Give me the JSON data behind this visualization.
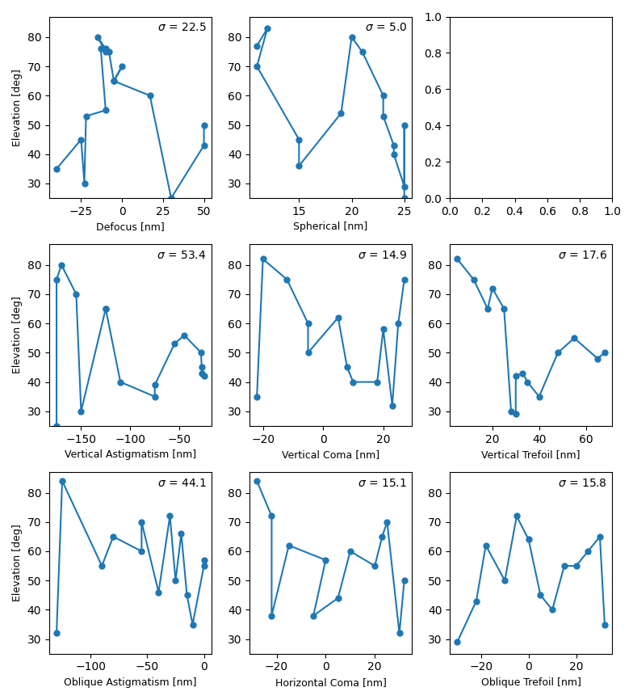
{
  "line_color": "#1f77b4",
  "marker": "o",
  "markersize": 5,
  "linewidth": 1.5,
  "ylabel": "Elevation [deg]",
  "ylim_default": [
    25,
    87
  ],
  "subplots": [
    {
      "xlabel": "Defocus [nm]",
      "sigma": "22.5",
      "x": [
        -40,
        -25,
        -23,
        -22,
        -15,
        -13,
        -10,
        -10,
        -5,
        0,
        -10,
        17,
        30,
        50,
        50
      ],
      "y": [
        35,
        45,
        30,
        53,
        55,
        76,
        75,
        80,
        65,
        70,
        65,
        60,
        25,
        43,
        50
      ]
    },
    {
      "xlabel": "Spherical [nm]",
      "sigma": "5.0",
      "x": [
        11,
        12,
        11,
        15,
        15,
        19,
        20,
        21,
        23,
        23,
        24,
        24,
        25,
        25
      ],
      "y": [
        77,
        83,
        70,
        45,
        36,
        54,
        80,
        75,
        60,
        43,
        40,
        29,
        50,
        25
      ]
    },
    {
      "xlabel": "",
      "sigma": null,
      "xlim": [
        0.0,
        1.0
      ],
      "ylim": [
        0.0,
        1.0
      ],
      "xticks": [
        0.0,
        0.2,
        0.4,
        0.6,
        0.8,
        1.0
      ],
      "yticks": [
        0.0,
        0.2,
        0.4,
        0.6,
        0.8,
        1.0
      ],
      "x": [],
      "y": []
    },
    {
      "xlabel": "Vertical Astigmatism [nm]",
      "sigma": "53.4",
      "x": [
        -175,
        -165,
        -170,
        -155,
        -150,
        -125,
        -125,
        -110,
        -75,
        -75,
        -55,
        -45,
        -28,
        -27,
        -27,
        -25
      ],
      "y": [
        25,
        75,
        80,
        70,
        30,
        65,
        65,
        40,
        35,
        39,
        53,
        56,
        43,
        50,
        45,
        42
      ]
    },
    {
      "xlabel": "Vertical Coma [nm]",
      "sigma": "14.9",
      "x": [
        -22,
        -20,
        -12,
        -5,
        -5,
        5,
        8,
        10,
        18,
        20,
        23,
        25,
        27
      ],
      "y": [
        35,
        82,
        75,
        60,
        50,
        62,
        45,
        40,
        40,
        58,
        32,
        60,
        75
      ]
    },
    {
      "xlabel": "Vertical Trefoil [nm]",
      "sigma": "17.6",
      "x": [
        5,
        12,
        18,
        20,
        25,
        28,
        30,
        30,
        33,
        35,
        40,
        48,
        55,
        65,
        68
      ],
      "y": [
        82,
        75,
        65,
        72,
        65,
        30,
        29,
        42,
        43,
        40,
        35,
        50,
        55,
        48,
        50
      ]
    },
    {
      "xlabel": "Oblique Astigmatism [nm]",
      "sigma": "44.1",
      "x": [
        -130,
        -125,
        -90,
        -80,
        -55,
        -55,
        -40,
        -30,
        -25,
        -20,
        -15,
        -10,
        0,
        0
      ],
      "y": [
        32,
        84,
        55,
        65,
        60,
        70,
        46,
        72,
        50,
        66,
        45,
        35,
        55,
        57
      ]
    },
    {
      "xlabel": "Horizontal Coma [nm]",
      "sigma": "15.1",
      "x": [
        -28,
        -22,
        -22,
        -15,
        0,
        -5,
        5,
        10,
        20,
        23,
        25,
        30,
        32
      ],
      "y": [
        84,
        72,
        38,
        62,
        57,
        38,
        44,
        60,
        55,
        65,
        70,
        32,
        50
      ]
    },
    {
      "xlabel": "Oblique Trefoil [nm]",
      "sigma": "15.8",
      "x": [
        -30,
        -22,
        -18,
        -10,
        -5,
        0,
        5,
        10,
        15,
        20,
        25,
        30,
        32
      ],
      "y": [
        29,
        43,
        62,
        50,
        72,
        64,
        45,
        40,
        55,
        55,
        60,
        65,
        35
      ]
    }
  ]
}
